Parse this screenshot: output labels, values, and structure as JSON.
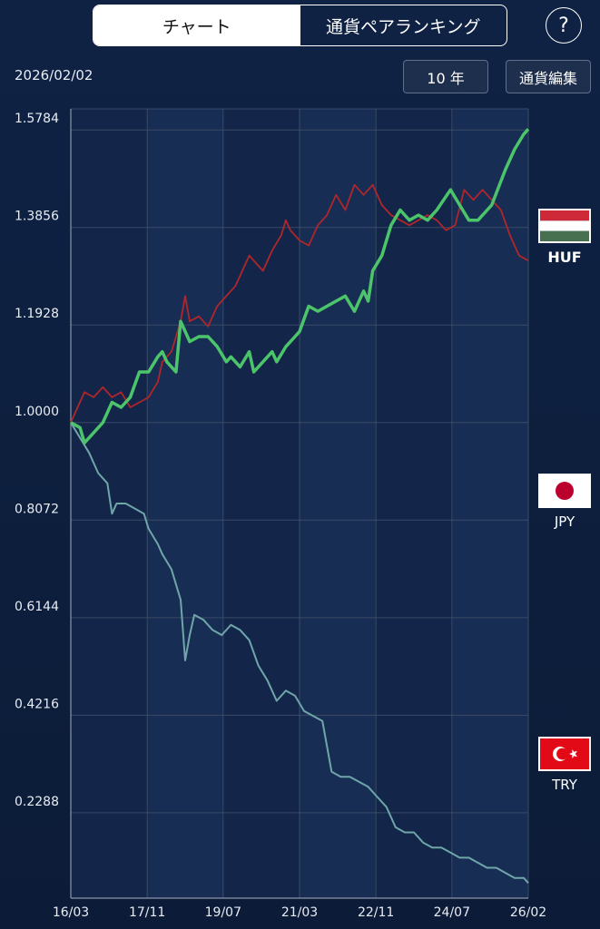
{
  "tabs": [
    {
      "label": "チャート",
      "active": true
    },
    {
      "label": "通貨ペアランキング",
      "active": false
    }
  ],
  "help_label": "?",
  "date": "2026/02/02",
  "period_button": "10 年",
  "edit_button": "通貨編集",
  "colors": {
    "background": "#0e1f3c",
    "grid": "#3a4a66",
    "HUF": "#4cc56a",
    "JPY": "#b0262a",
    "TRY": "#6fa6a8"
  },
  "legend": [
    {
      "code": "HUF",
      "flag": "hungary-flag-icon",
      "selected": true
    },
    {
      "code": "JPY",
      "flag": "japan-flag-icon",
      "selected": false
    },
    {
      "code": "TRY",
      "flag": "turkey-flag-icon",
      "selected": false
    }
  ],
  "chart_data": {
    "type": "line",
    "xlim": [
      0,
      10.0
    ],
    "ylim": [
      0.06,
      1.62
    ],
    "y_ticks": [
      "1.5784",
      "1.3856",
      "1.1928",
      "1.0000",
      "0.8072",
      "0.6144",
      "0.4216",
      "0.2288"
    ],
    "y_tick_values": [
      1.5784,
      1.3856,
      1.1928,
      1.0,
      0.8072,
      0.6144,
      0.4216,
      0.2288
    ],
    "x_ticks": [
      "16/03",
      "17/11",
      "19/07",
      "21/03",
      "22/11",
      "24/07",
      "26/02"
    ],
    "x_tick_positions": [
      0,
      1.67,
      3.33,
      5.0,
      6.67,
      8.33,
      10.0
    ],
    "grid": true,
    "series": [
      {
        "name": "HUF",
        "values": [
          [
            0,
            1.0
          ],
          [
            0.2,
            0.99
          ],
          [
            0.3,
            0.96
          ],
          [
            0.5,
            0.98
          ],
          [
            0.7,
            1.0
          ],
          [
            0.9,
            1.04
          ],
          [
            1.1,
            1.03
          ],
          [
            1.3,
            1.05
          ],
          [
            1.5,
            1.1
          ],
          [
            1.7,
            1.1
          ],
          [
            1.9,
            1.13
          ],
          [
            2.0,
            1.14
          ],
          [
            2.1,
            1.12
          ],
          [
            2.3,
            1.1
          ],
          [
            2.4,
            1.2
          ],
          [
            2.5,
            1.18
          ],
          [
            2.6,
            1.16
          ],
          [
            2.8,
            1.17
          ],
          [
            3.0,
            1.17
          ],
          [
            3.2,
            1.15
          ],
          [
            3.4,
            1.12
          ],
          [
            3.5,
            1.13
          ],
          [
            3.7,
            1.11
          ],
          [
            3.9,
            1.14
          ],
          [
            4.0,
            1.1
          ],
          [
            4.2,
            1.12
          ],
          [
            4.4,
            1.14
          ],
          [
            4.5,
            1.12
          ],
          [
            4.7,
            1.15
          ],
          [
            4.9,
            1.17
          ],
          [
            5.0,
            1.18
          ],
          [
            5.2,
            1.23
          ],
          [
            5.4,
            1.22
          ],
          [
            5.6,
            1.23
          ],
          [
            5.8,
            1.24
          ],
          [
            6.0,
            1.25
          ],
          [
            6.2,
            1.22
          ],
          [
            6.4,
            1.26
          ],
          [
            6.5,
            1.24
          ],
          [
            6.6,
            1.3
          ],
          [
            6.8,
            1.33
          ],
          [
            7.0,
            1.39
          ],
          [
            7.2,
            1.42
          ],
          [
            7.4,
            1.4
          ],
          [
            7.6,
            1.41
          ],
          [
            7.8,
            1.4
          ],
          [
            8.0,
            1.42
          ],
          [
            8.3,
            1.46
          ],
          [
            8.5,
            1.43
          ],
          [
            8.7,
            1.4
          ],
          [
            8.9,
            1.4
          ],
          [
            9.2,
            1.43
          ],
          [
            9.5,
            1.5
          ],
          [
            9.7,
            1.54
          ],
          [
            9.9,
            1.57
          ],
          [
            10.0,
            1.58
          ]
        ]
      },
      {
        "name": "JPY",
        "values": [
          [
            0,
            1.0
          ],
          [
            0.1,
            1.02
          ],
          [
            0.3,
            1.06
          ],
          [
            0.5,
            1.05
          ],
          [
            0.7,
            1.07
          ],
          [
            0.9,
            1.05
          ],
          [
            1.1,
            1.06
          ],
          [
            1.3,
            1.03
          ],
          [
            1.5,
            1.04
          ],
          [
            1.7,
            1.05
          ],
          [
            1.9,
            1.08
          ],
          [
            2.0,
            1.12
          ],
          [
            2.2,
            1.14
          ],
          [
            2.4,
            1.2
          ],
          [
            2.5,
            1.25
          ],
          [
            2.6,
            1.2
          ],
          [
            2.8,
            1.21
          ],
          [
            3.0,
            1.19
          ],
          [
            3.2,
            1.23
          ],
          [
            3.4,
            1.25
          ],
          [
            3.6,
            1.27
          ],
          [
            3.8,
            1.31
          ],
          [
            3.9,
            1.33
          ],
          [
            4.0,
            1.32
          ],
          [
            4.2,
            1.3
          ],
          [
            4.4,
            1.34
          ],
          [
            4.6,
            1.37
          ],
          [
            4.7,
            1.4
          ],
          [
            4.8,
            1.38
          ],
          [
            5.0,
            1.36
          ],
          [
            5.2,
            1.35
          ],
          [
            5.4,
            1.39
          ],
          [
            5.6,
            1.41
          ],
          [
            5.8,
            1.45
          ],
          [
            6.0,
            1.42
          ],
          [
            6.2,
            1.47
          ],
          [
            6.4,
            1.45
          ],
          [
            6.6,
            1.47
          ],
          [
            6.8,
            1.43
          ],
          [
            7.0,
            1.41
          ],
          [
            7.2,
            1.4
          ],
          [
            7.4,
            1.39
          ],
          [
            7.6,
            1.4
          ],
          [
            7.8,
            1.41
          ],
          [
            8.0,
            1.4
          ],
          [
            8.2,
            1.38
          ],
          [
            8.4,
            1.39
          ],
          [
            8.6,
            1.46
          ],
          [
            8.8,
            1.44
          ],
          [
            9.0,
            1.46
          ],
          [
            9.2,
            1.44
          ],
          [
            9.4,
            1.42
          ],
          [
            9.6,
            1.37
          ],
          [
            9.8,
            1.33
          ],
          [
            10.0,
            1.32
          ]
        ]
      },
      {
        "name": "TRY",
        "values": [
          [
            0,
            1.0
          ],
          [
            0.2,
            0.97
          ],
          [
            0.4,
            0.94
          ],
          [
            0.6,
            0.9
          ],
          [
            0.8,
            0.88
          ],
          [
            0.9,
            0.82
          ],
          [
            1.0,
            0.84
          ],
          [
            1.2,
            0.84
          ],
          [
            1.4,
            0.83
          ],
          [
            1.6,
            0.82
          ],
          [
            1.7,
            0.79
          ],
          [
            1.9,
            0.76
          ],
          [
            2.0,
            0.74
          ],
          [
            2.2,
            0.71
          ],
          [
            2.3,
            0.68
          ],
          [
            2.4,
            0.65
          ],
          [
            2.5,
            0.53
          ],
          [
            2.6,
            0.58
          ],
          [
            2.7,
            0.62
          ],
          [
            2.9,
            0.61
          ],
          [
            3.1,
            0.59
          ],
          [
            3.3,
            0.58
          ],
          [
            3.5,
            0.6
          ],
          [
            3.7,
            0.59
          ],
          [
            3.9,
            0.57
          ],
          [
            4.1,
            0.52
          ],
          [
            4.3,
            0.49
          ],
          [
            4.5,
            0.45
          ],
          [
            4.7,
            0.47
          ],
          [
            4.9,
            0.46
          ],
          [
            5.1,
            0.43
          ],
          [
            5.3,
            0.42
          ],
          [
            5.5,
            0.41
          ],
          [
            5.7,
            0.31
          ],
          [
            5.9,
            0.3
          ],
          [
            6.1,
            0.3
          ],
          [
            6.3,
            0.29
          ],
          [
            6.5,
            0.28
          ],
          [
            6.7,
            0.26
          ],
          [
            6.9,
            0.24
          ],
          [
            7.1,
            0.2
          ],
          [
            7.3,
            0.19
          ],
          [
            7.5,
            0.19
          ],
          [
            7.7,
            0.17
          ],
          [
            7.9,
            0.16
          ],
          [
            8.1,
            0.16
          ],
          [
            8.3,
            0.15
          ],
          [
            8.5,
            0.14
          ],
          [
            8.7,
            0.14
          ],
          [
            8.9,
            0.13
          ],
          [
            9.1,
            0.12
          ],
          [
            9.3,
            0.12
          ],
          [
            9.5,
            0.11
          ],
          [
            9.7,
            0.1
          ],
          [
            9.9,
            0.1
          ],
          [
            10.0,
            0.09
          ]
        ]
      }
    ]
  }
}
